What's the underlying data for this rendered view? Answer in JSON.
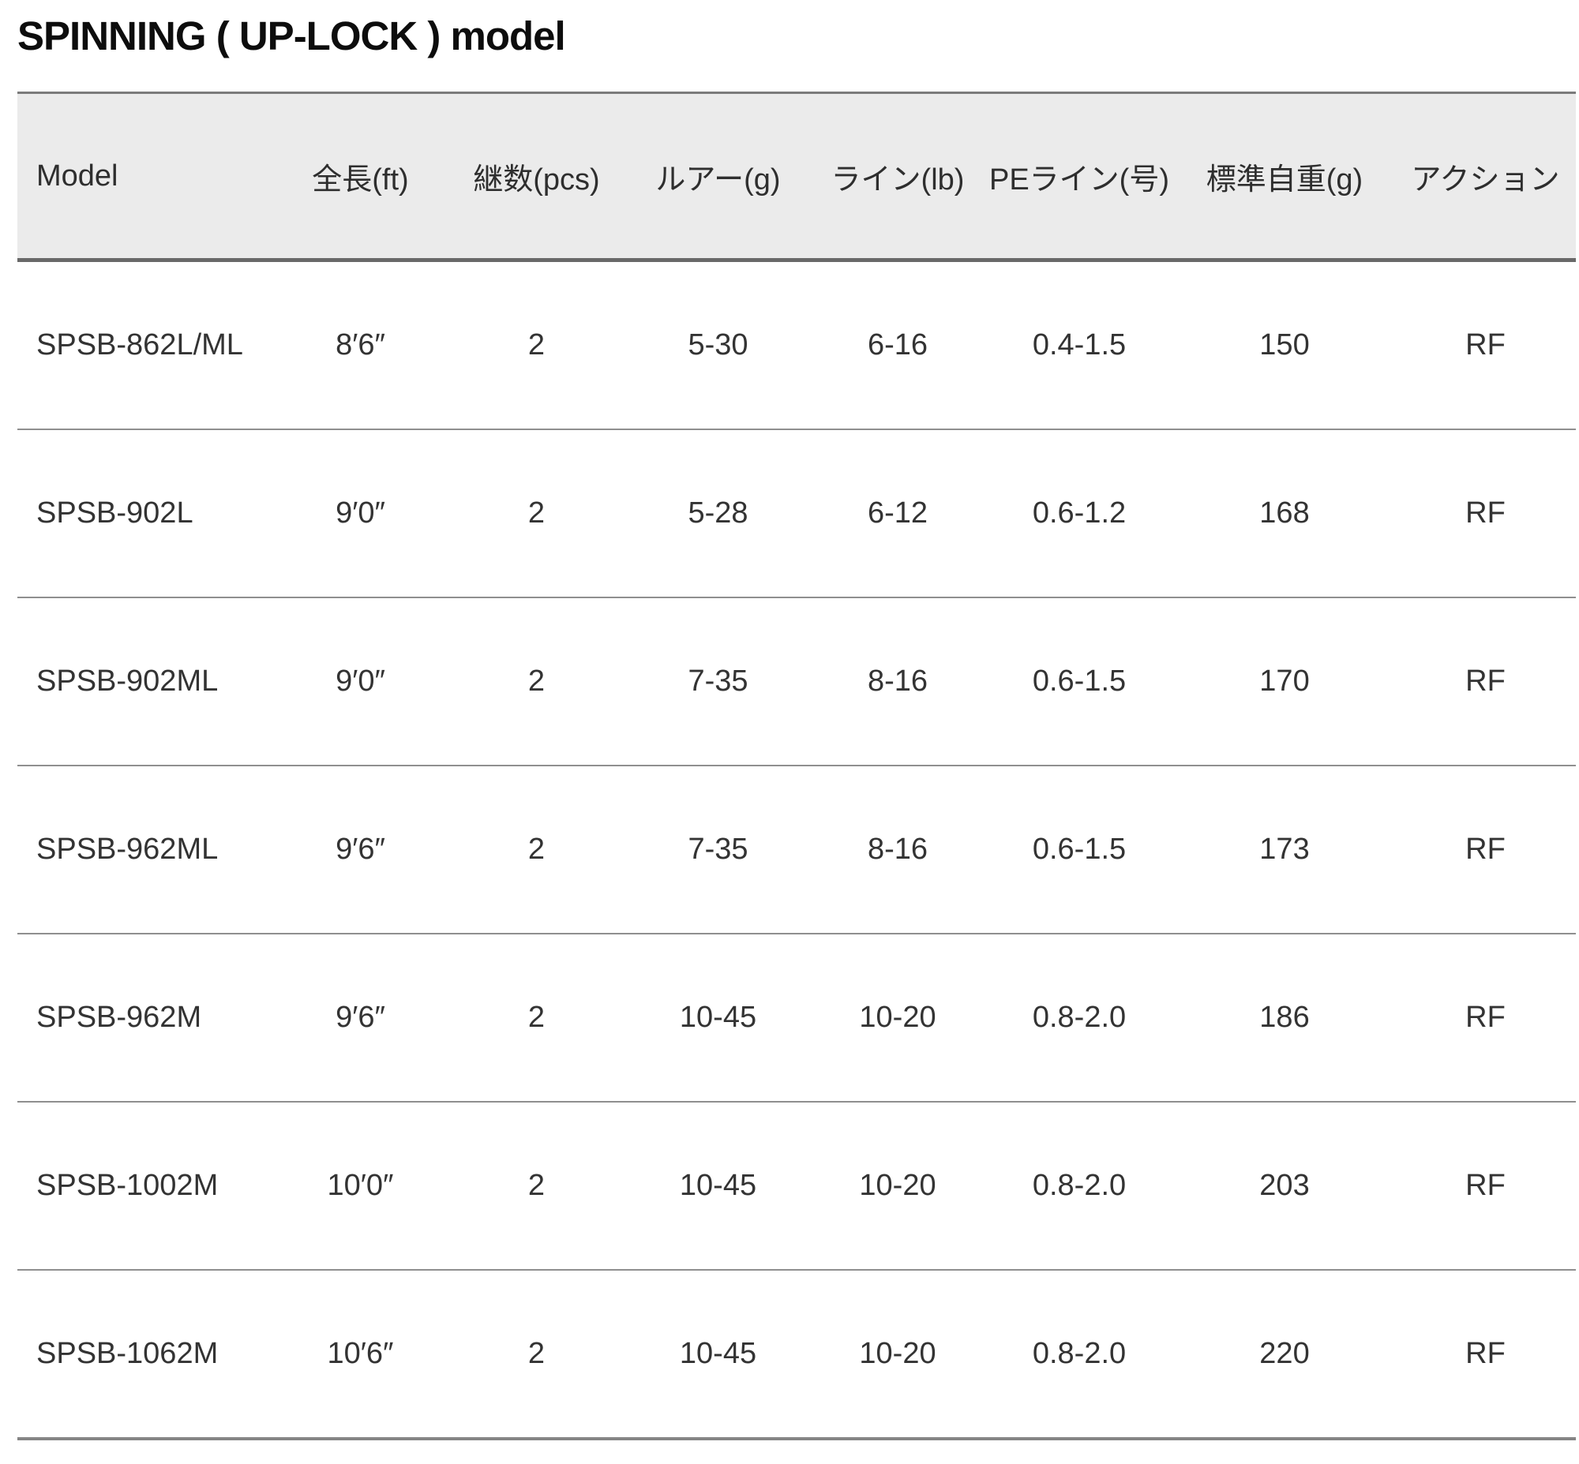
{
  "page": {
    "title": "SPINNING ( UP-LOCK ) model"
  },
  "colors": {
    "header_background": "#ebebeb",
    "header_rule": "#696969",
    "row_separator": "#8f8f8f",
    "title_text": "#0d0d0d",
    "body_text": "#333333"
  },
  "table": {
    "columns": [
      {
        "key": "model",
        "label": "Model"
      },
      {
        "key": "length",
        "label": "全長(ft)"
      },
      {
        "key": "pieces",
        "label": "継数(pcs)"
      },
      {
        "key": "lure",
        "label": "ルアー(g)"
      },
      {
        "key": "line",
        "label": "ライン(lb)"
      },
      {
        "key": "pe-line",
        "label": "PEライン(号)"
      },
      {
        "key": "weight",
        "label": "標準自重(g)"
      },
      {
        "key": "action",
        "label": "アクション"
      }
    ],
    "rows": [
      [
        "SPSB-862L/ML",
        "8′6″",
        "2",
        "5-30",
        "6-16",
        "0.4-1.5",
        "150",
        "RF"
      ],
      [
        "SPSB-902L",
        "9′0″",
        "2",
        "5-28",
        "6-12",
        "0.6-1.2",
        "168",
        "RF"
      ],
      [
        "SPSB-902ML",
        "9′0″",
        "2",
        "7-35",
        "8-16",
        "0.6-1.5",
        "170",
        "RF"
      ],
      [
        "SPSB-962ML",
        "9′6″",
        "2",
        "7-35",
        "8-16",
        "0.6-1.5",
        "173",
        "RF"
      ],
      [
        "SPSB-962M",
        "9′6″",
        "2",
        "10-45",
        "10-20",
        "0.8-2.0",
        "186",
        "RF"
      ],
      [
        "SPSB-1002M",
        "10′0″",
        "2",
        "10-45",
        "10-20",
        "0.8-2.0",
        "203",
        "RF"
      ],
      [
        "SPSB-1062M",
        "10′6″",
        "2",
        "10-45",
        "10-20",
        "0.8-2.0",
        "220",
        "RF"
      ]
    ]
  }
}
